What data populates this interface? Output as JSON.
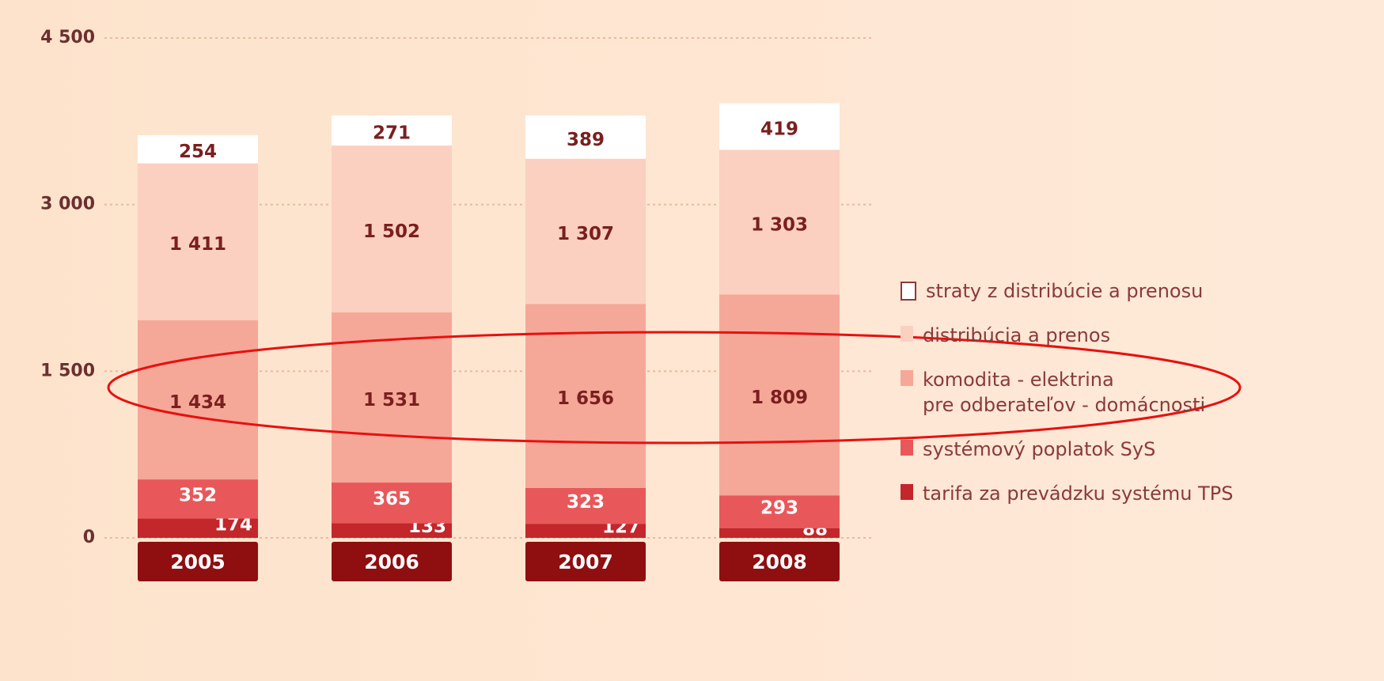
{
  "chart_data": {
    "type": "stacked_bar",
    "categories": [
      "2005",
      "2006",
      "2007",
      "2008"
    ],
    "series": [
      {
        "name": "tarifa za prevádzku systému TPS",
        "color": "#c3262b",
        "values": [
          174,
          133,
          127,
          88
        ]
      },
      {
        "name": "systémový poplatok SyS",
        "color": "#e8585a",
        "values": [
          352,
          365,
          323,
          293
        ]
      },
      {
        "name": "komodita - elektrina\npre odberateľov - domácnosti",
        "color": "#f5a898",
        "values": [
          1434,
          1531,
          1656,
          1809
        ],
        "value_labels": [
          "1 434",
          "1 531",
          "1 656",
          "1 809"
        ]
      },
      {
        "name": "distribúcia a prenos",
        "color": "#fbd0c0",
        "values": [
          1411,
          1502,
          1307,
          1303
        ],
        "value_labels": [
          "1 411",
          "1 502",
          "1 307",
          "1 303"
        ]
      },
      {
        "name": "straty z distribúcie a prenosu",
        "color": "#ffffff",
        "values": [
          254,
          271,
          389,
          419
        ]
      }
    ],
    "ylim": [
      0,
      4500
    ],
    "yticks": [
      0,
      {
        "value": 1500,
        "label": "1 500"
      },
      {
        "value": 3000,
        "label": "3 000"
      },
      {
        "value": 4500,
        "label": "4 500"
      }
    ],
    "grid": true
  }
}
